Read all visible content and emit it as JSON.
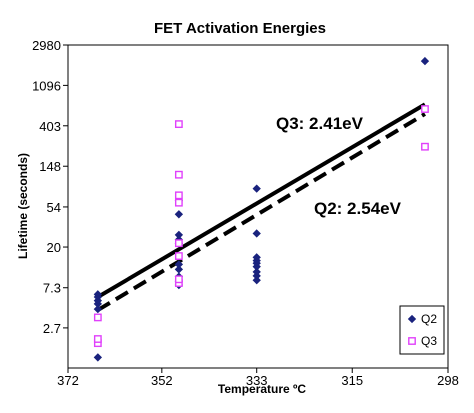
{
  "chart_data": {
    "type": "scatter",
    "title": "FET Activation Energies",
    "xlabel": "Temperature ºC",
    "ylabel": "Lifetime (seconds)",
    "x_reversed": true,
    "x_scale": "reciprocal-temperature",
    "y_scale": "log",
    "xlim": [
      372,
      298
    ],
    "ylim": [
      1,
      2980
    ],
    "x_ticks": [
      372,
      352,
      333,
      315,
      298
    ],
    "y_ticks": [
      2.7,
      7.3,
      20,
      54,
      148,
      403,
      1096,
      2980
    ],
    "y_tick_labels": [
      "2.7",
      "7.3",
      "20",
      "54",
      "148",
      "403",
      "1096",
      "2980"
    ],
    "x_tick_labels": [
      "372",
      "352",
      "333",
      "315",
      "298"
    ],
    "grid": false,
    "legend_position": "bottom-right",
    "series": [
      {
        "name": "Q2",
        "marker": "diamond",
        "color": "#1a237e",
        "points": [
          [
            365.5,
            1.3
          ],
          [
            365.5,
            4.3
          ],
          [
            365.5,
            4.9
          ],
          [
            365.5,
            5.3
          ],
          [
            365.5,
            5.8
          ],
          [
            365.5,
            6.2
          ],
          [
            348.5,
            7.8
          ],
          [
            348.5,
            8.6
          ],
          [
            348.5,
            9.6
          ],
          [
            348.5,
            11.5
          ],
          [
            348.5,
            13.0
          ],
          [
            348.5,
            22.0
          ],
          [
            348.5,
            24.0
          ],
          [
            348.5,
            27.0
          ],
          [
            348.5,
            45.0
          ],
          [
            348.5,
            63.0
          ],
          [
            333.0,
            8.8
          ],
          [
            333.0,
            9.8
          ],
          [
            333.0,
            10.8
          ],
          [
            333.0,
            12.3
          ],
          [
            333.0,
            13.4
          ],
          [
            333.0,
            14.3
          ],
          [
            333.0,
            15.5
          ],
          [
            333.0,
            28.0
          ],
          [
            333.0,
            85.0
          ],
          [
            302.0,
            2000.0
          ]
        ]
      },
      {
        "name": "Q3",
        "marker": "square",
        "color": "#e040fb",
        "points": [
          [
            365.5,
            1.85
          ],
          [
            365.5,
            2.05
          ],
          [
            365.5,
            3.5
          ],
          [
            348.5,
            8.2
          ],
          [
            348.5,
            9.0
          ],
          [
            348.5,
            16.0
          ],
          [
            348.5,
            22.0
          ],
          [
            348.5,
            60.0
          ],
          [
            348.5,
            72.0
          ],
          [
            348.5,
            120.0
          ],
          [
            348.5,
            420.0
          ],
          [
            302.0,
            240.0
          ],
          [
            302.0,
            610.0
          ]
        ]
      }
    ],
    "trendlines": [
      {
        "name": "Q3",
        "style": "solid",
        "from": [
          365.5,
          5.8
        ],
        "to": [
          302.0,
          685.0
        ]
      },
      {
        "name": "Q2",
        "style": "dashed",
        "from": [
          365.5,
          4.2
        ],
        "to": [
          302.0,
          540.0
        ]
      }
    ],
    "annotations": [
      {
        "text": "Q3:  2.41eV",
        "anchor": "upper-right-of-line"
      },
      {
        "text": "Q2: 2.54eV",
        "anchor": "right-below-line"
      }
    ]
  }
}
